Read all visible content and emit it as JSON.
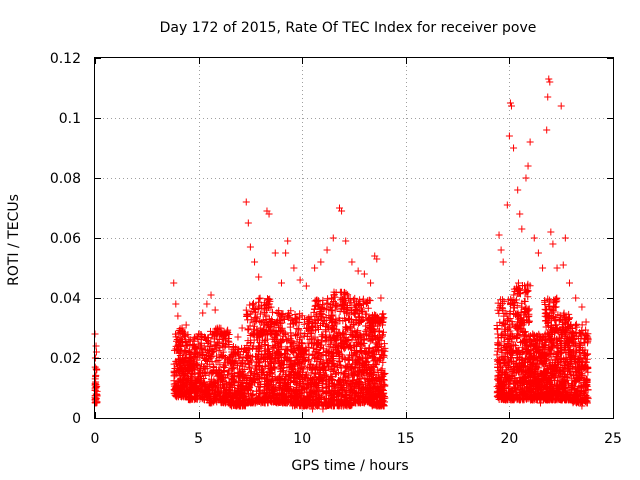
{
  "chart_data": {
    "type": "scatter",
    "title": "Day 172 of 2015, Rate Of TEC Index for receiver pove",
    "xlabel": "GPS time / hours",
    "ylabel": "ROTI / TECUs",
    "xlim": [
      0,
      25
    ],
    "ylim": [
      0,
      0.12
    ],
    "xticks": [
      0,
      5,
      10,
      15,
      20,
      25
    ],
    "xtick_labels": [
      "0",
      "5",
      "10",
      "15",
      "20",
      "25"
    ],
    "yticks": [
      0,
      0.02,
      0.04,
      0.06,
      0.08,
      0.1,
      0.12
    ],
    "ytick_labels": [
      "0",
      "0.02",
      "0.04",
      "0.06",
      "0.08",
      "0.1",
      "0.12"
    ],
    "grid": true,
    "marker": "+",
    "color": "#ff0000",
    "series": [
      {
        "name": "ROTI",
        "points": [
          [
            0.0,
            0.028
          ],
          [
            0.05,
            0.024
          ],
          [
            0.02,
            0.02
          ],
          [
            0.08,
            0.016
          ],
          [
            0.03,
            0.012
          ],
          [
            0.06,
            0.008
          ],
          [
            0.01,
            0.006
          ],
          [
            0.04,
            0.01
          ],
          [
            0.07,
            0.022
          ],
          [
            0.05,
            0.005
          ],
          [
            3.8,
            0.045
          ],
          [
            3.9,
            0.038
          ],
          [
            4.0,
            0.034
          ],
          [
            4.2,
            0.03
          ],
          [
            4.4,
            0.031
          ],
          [
            4.6,
            0.026
          ],
          [
            4.8,
            0.024
          ],
          [
            5.0,
            0.028
          ],
          [
            5.2,
            0.035
          ],
          [
            5.4,
            0.038
          ],
          [
            5.6,
            0.041
          ],
          [
            5.8,
            0.036
          ],
          [
            6.0,
            0.03
          ],
          [
            6.3,
            0.026
          ],
          [
            6.6,
            0.022
          ],
          [
            6.9,
            0.027
          ],
          [
            7.1,
            0.03
          ],
          [
            7.3,
            0.072
          ],
          [
            7.4,
            0.065
          ],
          [
            7.5,
            0.057
          ],
          [
            7.7,
            0.052
          ],
          [
            7.9,
            0.047
          ],
          [
            8.3,
            0.069
          ],
          [
            8.4,
            0.068
          ],
          [
            8.7,
            0.055
          ],
          [
            9.0,
            0.045
          ],
          [
            9.2,
            0.055
          ],
          [
            9.3,
            0.059
          ],
          [
            9.6,
            0.05
          ],
          [
            9.9,
            0.046
          ],
          [
            10.2,
            0.044
          ],
          [
            10.6,
            0.05
          ],
          [
            10.9,
            0.052
          ],
          [
            11.2,
            0.056
          ],
          [
            11.5,
            0.06
          ],
          [
            11.8,
            0.07
          ],
          [
            11.9,
            0.069
          ],
          [
            12.1,
            0.059
          ],
          [
            12.4,
            0.052
          ],
          [
            12.7,
            0.049
          ],
          [
            13.0,
            0.048
          ],
          [
            13.3,
            0.045
          ],
          [
            13.5,
            0.054
          ],
          [
            13.6,
            0.053
          ],
          [
            13.8,
            0.04
          ],
          [
            13.9,
            0.032
          ],
          [
            19.5,
            0.061
          ],
          [
            19.6,
            0.056
          ],
          [
            19.7,
            0.052
          ],
          [
            19.9,
            0.071
          ],
          [
            20.0,
            0.094
          ],
          [
            20.05,
            0.105
          ],
          [
            20.1,
            0.104
          ],
          [
            20.2,
            0.09
          ],
          [
            20.4,
            0.076
          ],
          [
            20.5,
            0.068
          ],
          [
            20.6,
            0.063
          ],
          [
            20.8,
            0.08
          ],
          [
            20.9,
            0.084
          ],
          [
            21.0,
            0.092
          ],
          [
            21.2,
            0.06
          ],
          [
            21.4,
            0.055
          ],
          [
            21.6,
            0.05
          ],
          [
            21.8,
            0.096
          ],
          [
            21.85,
            0.107
          ],
          [
            21.9,
            0.113
          ],
          [
            21.95,
            0.112
          ],
          [
            22.0,
            0.062
          ],
          [
            22.1,
            0.058
          ],
          [
            22.3,
            0.05
          ],
          [
            22.5,
            0.104
          ],
          [
            22.6,
            0.051
          ],
          [
            22.7,
            0.06
          ],
          [
            22.9,
            0.045
          ],
          [
            23.2,
            0.04
          ],
          [
            23.5,
            0.037
          ],
          [
            23.7,
            0.032
          ],
          [
            4.0,
            0.01
          ],
          [
            4.5,
            0.008
          ],
          [
            5.5,
            0.009
          ],
          [
            6.5,
            0.005
          ],
          [
            7.0,
            0.004
          ],
          [
            8.0,
            0.006
          ],
          [
            9.5,
            0.005
          ],
          [
            10.5,
            0.003
          ],
          [
            11.0,
            0.003
          ],
          [
            12.0,
            0.004
          ],
          [
            13.0,
            0.005
          ],
          [
            13.8,
            0.004
          ],
          [
            19.6,
            0.007
          ],
          [
            20.5,
            0.006
          ],
          [
            21.5,
            0.005
          ],
          [
            22.5,
            0.006
          ],
          [
            23.5,
            0.004
          ]
        ]
      }
    ],
    "density_envelope": [
      {
        "x_start": 0.0,
        "x_end": 0.1,
        "y_floor": 0.005,
        "y_top": 0.018,
        "n": 40
      },
      {
        "x_start": 3.8,
        "x_end": 4.5,
        "y_floor": 0.007,
        "y_top": 0.03,
        "n": 220
      },
      {
        "x_start": 4.5,
        "x_end": 5.5,
        "y_floor": 0.006,
        "y_top": 0.028,
        "n": 260
      },
      {
        "x_start": 5.5,
        "x_end": 6.5,
        "y_floor": 0.005,
        "y_top": 0.03,
        "n": 260
      },
      {
        "x_start": 6.5,
        "x_end": 7.3,
        "y_floor": 0.004,
        "y_top": 0.024,
        "n": 220
      },
      {
        "x_start": 7.3,
        "x_end": 8.5,
        "y_floor": 0.005,
        "y_top": 0.04,
        "n": 380
      },
      {
        "x_start": 8.5,
        "x_end": 9.5,
        "y_floor": 0.005,
        "y_top": 0.036,
        "n": 320
      },
      {
        "x_start": 9.5,
        "x_end": 10.5,
        "y_floor": 0.004,
        "y_top": 0.035,
        "n": 320
      },
      {
        "x_start": 10.5,
        "x_end": 11.5,
        "y_floor": 0.004,
        "y_top": 0.04,
        "n": 340
      },
      {
        "x_start": 11.5,
        "x_end": 12.5,
        "y_floor": 0.004,
        "y_top": 0.042,
        "n": 340
      },
      {
        "x_start": 12.5,
        "x_end": 13.3,
        "y_floor": 0.005,
        "y_top": 0.04,
        "n": 300
      },
      {
        "x_start": 13.3,
        "x_end": 14.0,
        "y_floor": 0.004,
        "y_top": 0.035,
        "n": 260
      },
      {
        "x_start": 19.4,
        "x_end": 20.2,
        "y_floor": 0.006,
        "y_top": 0.04,
        "n": 300
      },
      {
        "x_start": 20.2,
        "x_end": 21.0,
        "y_floor": 0.006,
        "y_top": 0.045,
        "n": 320
      },
      {
        "x_start": 21.0,
        "x_end": 21.7,
        "y_floor": 0.006,
        "y_top": 0.028,
        "n": 260
      },
      {
        "x_start": 21.7,
        "x_end": 22.3,
        "y_floor": 0.006,
        "y_top": 0.04,
        "n": 280
      },
      {
        "x_start": 22.3,
        "x_end": 23.0,
        "y_floor": 0.006,
        "y_top": 0.035,
        "n": 260
      },
      {
        "x_start": 23.0,
        "x_end": 23.8,
        "y_floor": 0.005,
        "y_top": 0.032,
        "n": 260
      }
    ]
  }
}
